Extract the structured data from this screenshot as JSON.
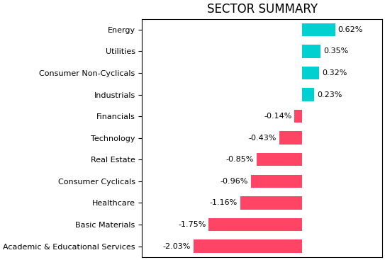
{
  "chart_data": {
    "type": "bar",
    "orientation": "horizontal",
    "title": "SECTOR SUMMARY",
    "categories": [
      "Energy",
      "Utilities",
      "Consumer Non-Cyclicals",
      "Industrials",
      "Financials",
      "Technology",
      "Real Estate",
      "Consumer Cyclicals",
      "Healthcare",
      "Basic Materials",
      "Academic & Educational Services"
    ],
    "values": [
      0.62,
      0.35,
      0.32,
      0.23,
      -0.14,
      -0.43,
      -0.85,
      -0.96,
      -1.16,
      -1.75,
      -2.03
    ],
    "value_labels": [
      "0.62%",
      "0.35%",
      "0.32%",
      "0.23%",
      "-0.14%",
      "-0.43%",
      "-0.85%",
      "-0.96%",
      "-1.16%",
      "-1.75%",
      "-2.03%"
    ],
    "colors": [
      "#00d0d0",
      "#00d0d0",
      "#00d0d0",
      "#00d0d0",
      "#ff4466",
      "#ff4466",
      "#ff4466",
      "#ff4466",
      "#ff4466",
      "#ff4466",
      "#ff4466"
    ],
    "xlim": [
      -3,
      1.5
    ],
    "data_labels": true,
    "tick_labels": "y",
    "grid": false
  }
}
